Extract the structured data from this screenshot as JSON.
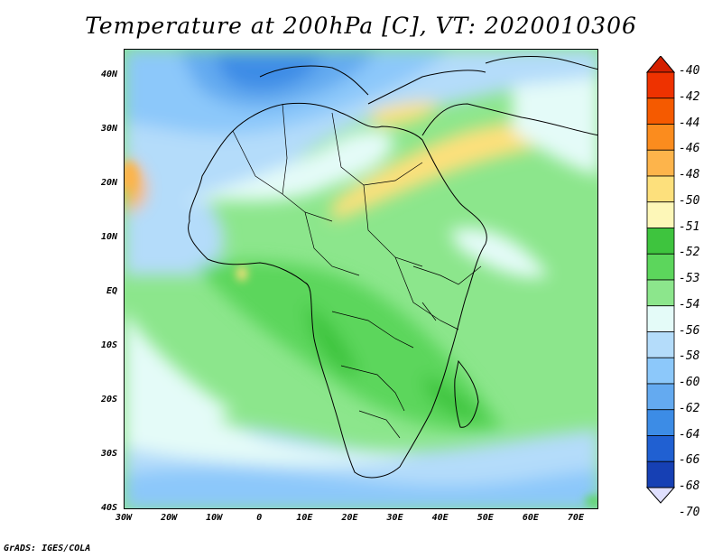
{
  "title": "Temperature at 200hPa [C], VT: 2020010306",
  "credit": "GrADS: IGES/COLA",
  "map": {
    "lon_range": [
      -30,
      75
    ],
    "lat_range": [
      -40,
      45
    ],
    "lat_ticks": [
      {
        "value": 40,
        "label": "40N"
      },
      {
        "value": 30,
        "label": "30N"
      },
      {
        "value": 20,
        "label": "20N"
      },
      {
        "value": 10,
        "label": "10N"
      },
      {
        "value": 0,
        "label": "EQ"
      },
      {
        "value": -10,
        "label": "10S"
      },
      {
        "value": -20,
        "label": "20S"
      },
      {
        "value": -30,
        "label": "30S"
      },
      {
        "value": -40,
        "label": "40S"
      }
    ],
    "lon_ticks": [
      {
        "value": -30,
        "label": "30W"
      },
      {
        "value": -20,
        "label": "20W"
      },
      {
        "value": -10,
        "label": "10W"
      },
      {
        "value": 0,
        "label": "0"
      },
      {
        "value": 10,
        "label": "10E"
      },
      {
        "value": 20,
        "label": "20E"
      },
      {
        "value": 30,
        "label": "30E"
      },
      {
        "value": 40,
        "label": "40E"
      },
      {
        "value": 50,
        "label": "50E"
      },
      {
        "value": 60,
        "label": "60E"
      },
      {
        "value": 70,
        "label": "70E"
      }
    ]
  },
  "colorbar": {
    "labels": [
      "-40",
      "-42",
      "-44",
      "-46",
      "-48",
      "-50",
      "-51",
      "-52",
      "-53",
      "-54",
      "-56",
      "-58",
      "-60",
      "-62",
      "-64",
      "-66",
      "-68",
      "-70"
    ],
    "colors": [
      "#d42000",
      "#ee3200",
      "#f55a00",
      "#fb8c1e",
      "#fdb44b",
      "#fde07c",
      "#fdf7b8",
      "#3ec43e",
      "#5cd65c",
      "#8ce68c",
      "#e4fbf8",
      "#b4dcfa",
      "#8cc8fa",
      "#64aaf0",
      "#3c8ce6",
      "#2060d2",
      "#1640b4",
      "#0a1e82"
    ]
  }
}
